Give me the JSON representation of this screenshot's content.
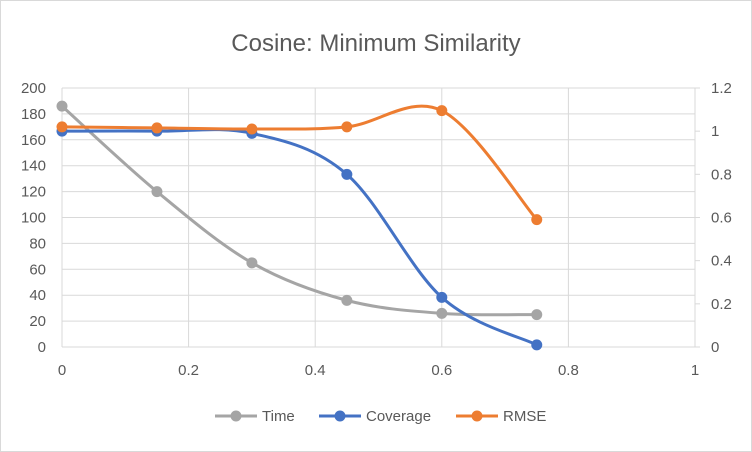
{
  "chart_data": {
    "type": "line",
    "title": "Cosine: Minimum Similarity",
    "xlabel": "",
    "ylabel": "",
    "xlim": [
      0,
      1
    ],
    "ylim": [
      0,
      200
    ],
    "y2lim": [
      0,
      1.2
    ],
    "x_ticks": [
      "0",
      "0.2",
      "0.4",
      "0.6",
      "0.8",
      "1"
    ],
    "y_ticks": [
      "0",
      "20",
      "40",
      "60",
      "80",
      "100",
      "120",
      "140",
      "160",
      "180",
      "200"
    ],
    "y2_ticks": [
      "0",
      "0.2",
      "0.4",
      "0.6",
      "0.8",
      "1",
      "1.2"
    ],
    "grid": true,
    "legend_position": "bottom",
    "series": [
      {
        "name": "Time",
        "axis": "left",
        "color": "#a5a5a5",
        "x": [
          0,
          0.15,
          0.3,
          0.45,
          0.6,
          0.75
        ],
        "y": [
          186,
          120,
          65,
          36,
          26,
          25
        ]
      },
      {
        "name": "Coverage",
        "axis": "right",
        "color": "#4472c4",
        "x": [
          0,
          0.15,
          0.3,
          0.45,
          0.6,
          0.75
        ],
        "y": [
          1.0,
          1.0,
          0.99,
          0.8,
          0.23,
          0.01
        ]
      },
      {
        "name": "RMSE",
        "axis": "right",
        "color": "#ed7d31",
        "x": [
          0,
          0.15,
          0.3,
          0.45,
          0.6,
          0.75
        ],
        "y": [
          1.02,
          1.015,
          1.01,
          1.02,
          1.095,
          0.59
        ]
      }
    ]
  }
}
